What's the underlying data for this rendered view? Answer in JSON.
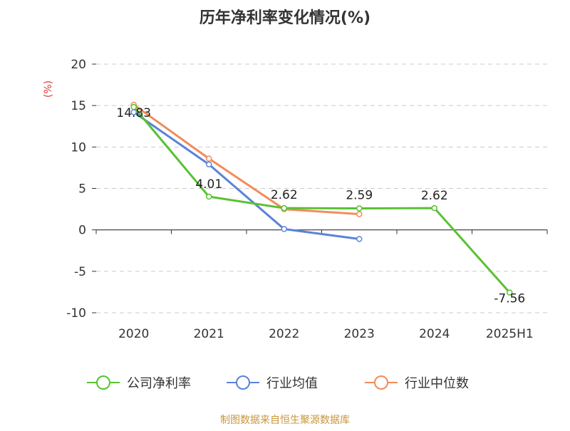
{
  "chart_data": {
    "type": "line",
    "title": "历年净利率变化情况(%)",
    "ylabel": "(%)",
    "xlabel": "",
    "categories": [
      "2020",
      "2021",
      "2022",
      "2023",
      "2024",
      "2025H1"
    ],
    "ylim": [
      -10,
      20
    ],
    "yticks": [
      20,
      15,
      10,
      5,
      0,
      -5,
      -10
    ],
    "grid": true,
    "legend_position": "bottom",
    "series": [
      {
        "name": "公司净利率",
        "color": "#5ac134",
        "values": [
          14.83,
          4.01,
          2.62,
          2.59,
          2.62,
          -7.56
        ],
        "labels": [
          "14.83",
          "4.01",
          "2.62",
          "2.59",
          "2.62",
          "-7.56"
        ]
      },
      {
        "name": "行业均值",
        "color": "#5a83d9",
        "values": [
          14.2,
          7.9,
          0.1,
          -1.1,
          null,
          null
        ]
      },
      {
        "name": "行业中位数",
        "color": "#f08c5a",
        "values": [
          15.1,
          8.6,
          2.5,
          1.9,
          null,
          null
        ]
      }
    ]
  },
  "source": "制图数据来自恒生聚源数据库"
}
